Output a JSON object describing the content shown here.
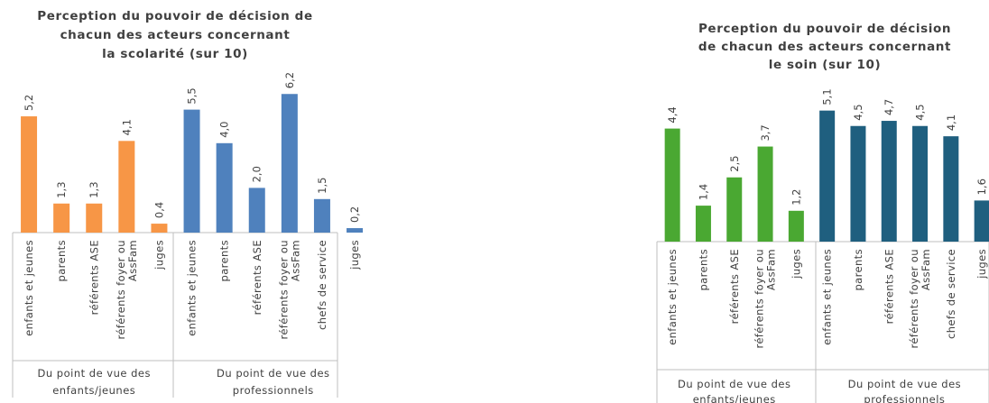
{
  "chart_data": [
    {
      "type": "bar",
      "title_lines": [
        "Perception du pouvoir de décision de",
        "chacun des acteurs concernant",
        "la scolarité (sur 10)"
      ],
      "groups": [
        {
          "label_lines": [
            "Du point de vue des",
            "enfants/jeunes"
          ],
          "color": "#f79646",
          "bars": [
            {
              "category_lines": [
                "enfants et jeunes"
              ],
              "value": 5.2,
              "label": "5,2"
            },
            {
              "category_lines": [
                "parents"
              ],
              "value": 1.3,
              "label": "1,3"
            },
            {
              "category_lines": [
                "référents ASE"
              ],
              "value": 1.3,
              "label": "1,3"
            },
            {
              "category_lines": [
                "référents foyer ou",
                "AssFam"
              ],
              "value": 4.1,
              "label": "4,1"
            },
            {
              "category_lines": [
                "juges"
              ],
              "value": 0.4,
              "label": "0,4"
            }
          ]
        },
        {
          "label_lines": [
            "Du point de vue des",
            "professionnels"
          ],
          "color": "#4f81bd",
          "bars": [
            {
              "category_lines": [
                "enfants et jeunes"
              ],
              "value": 5.5,
              "label": "5,5"
            },
            {
              "category_lines": [
                "parents"
              ],
              "value": 4.0,
              "label": "4,0"
            },
            {
              "category_lines": [
                "référents ASE"
              ],
              "value": 2.0,
              "label": "2,0"
            },
            {
              "category_lines": [
                "référents foyer ou",
                "AssFam"
              ],
              "value": 6.2,
              "label": "6,2"
            },
            {
              "category_lines": [
                "chefs de service"
              ],
              "value": 1.5,
              "label": "1,5"
            },
            {
              "category_lines": [
                "juges"
              ],
              "value": 0.2,
              "label": "0,2"
            }
          ]
        }
      ]
    },
    {
      "type": "bar",
      "title_lines": [
        "Perception du pouvoir de décision",
        "de chacun des acteurs concernant",
        "le soin (sur 10)"
      ],
      "groups": [
        {
          "label_lines": [
            "Du point de vue des",
            "enfants/jeunes"
          ],
          "color": "#4aa832",
          "bars": [
            {
              "category_lines": [
                "enfants et jeunes"
              ],
              "value": 4.4,
              "label": "4,4"
            },
            {
              "category_lines": [
                "parents"
              ],
              "value": 1.4,
              "label": "1,4"
            },
            {
              "category_lines": [
                "référents ASE"
              ],
              "value": 2.5,
              "label": "2,5"
            },
            {
              "category_lines": [
                "référents foyer ou",
                "AssFam"
              ],
              "value": 3.7,
              "label": "3,7"
            },
            {
              "category_lines": [
                "juges"
              ],
              "value": 1.2,
              "label": "1,2"
            }
          ]
        },
        {
          "label_lines": [
            "Du point de vue des",
            "professionnels"
          ],
          "color": "#1f5f7f",
          "bars": [
            {
              "category_lines": [
                "enfants et jeunes"
              ],
              "value": 5.1,
              "label": "5,1"
            },
            {
              "category_lines": [
                "parents"
              ],
              "value": 4.5,
              "label": "4,5"
            },
            {
              "category_lines": [
                "référents ASE"
              ],
              "value": 4.7,
              "label": "4,7"
            },
            {
              "category_lines": [
                "référents foyer ou",
                "AssFam"
              ],
              "value": 4.5,
              "label": "4,5"
            },
            {
              "category_lines": [
                "chefs de service"
              ],
              "value": 4.1,
              "label": "4,1"
            },
            {
              "category_lines": [
                "juges"
              ],
              "value": 1.6,
              "label": "1,6"
            }
          ]
        }
      ]
    }
  ]
}
